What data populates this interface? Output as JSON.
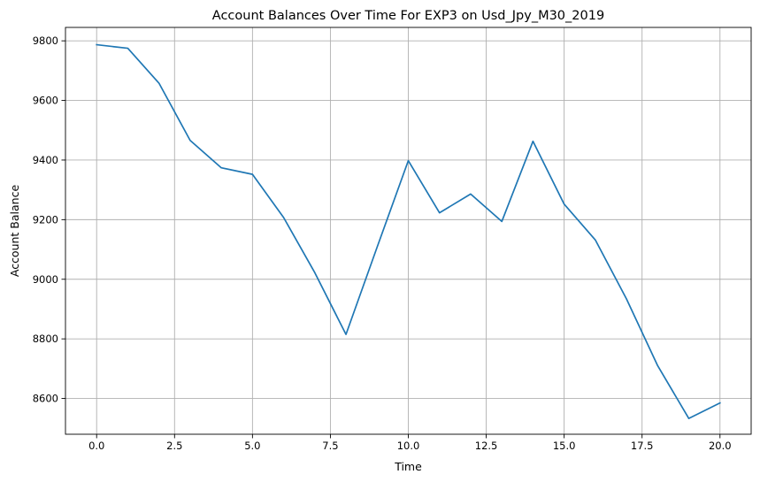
{
  "chart_data": {
    "type": "line",
    "title": "Account Balances Over Time For EXP3 on Usd_Jpy_M30_2019",
    "xlabel": "Time",
    "ylabel": "Account Balance",
    "xlim": [
      -1.0,
      21.0
    ],
    "ylim": [
      8480,
      9845
    ],
    "xticks": [
      0.0,
      2.5,
      5.0,
      7.5,
      10.0,
      12.5,
      15.0,
      17.5,
      20.0
    ],
    "xtick_labels": [
      "0.0",
      "2.5",
      "5.0",
      "7.5",
      "10.0",
      "12.5",
      "15.0",
      "17.5",
      "20.0"
    ],
    "yticks": [
      8600,
      8800,
      9000,
      9200,
      9400,
      9600,
      9800
    ],
    "ytick_labels": [
      "8600",
      "8800",
      "9000",
      "9200",
      "9400",
      "9600",
      "9800"
    ],
    "grid": true,
    "series": [
      {
        "color": "#1f77b4",
        "x": [
          0,
          1,
          2,
          3,
          4,
          5,
          6,
          7,
          8,
          9,
          10,
          11,
          12,
          13,
          14,
          15,
          16,
          17,
          18,
          19,
          20
        ],
        "y": [
          9787,
          9775,
          9658,
          9466,
          9374,
          9352,
          9207,
          9022,
          8815,
          9108,
          9398,
          9223,
          9286,
          9194,
          9463,
          9252,
          9132,
          8934,
          8710,
          8533,
          8585
        ]
      }
    ]
  }
}
